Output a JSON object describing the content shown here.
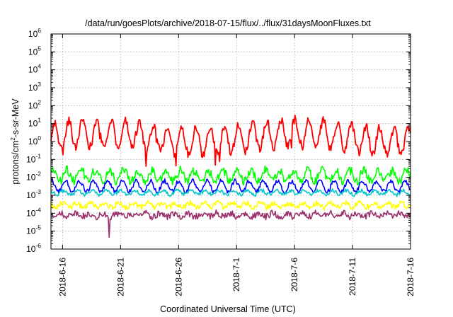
{
  "chart_data": {
    "type": "line",
    "title": "/data/run/goesPlots/archive/2018-07-15/flux/../flux/31daysMoonFluxes.txt",
    "xlabel": "Coordinated Universal Time (UTC)",
    "ylabel": {
      "base": "protons/cm",
      "sup": "2",
      "rest": "-s-sr-MeV"
    },
    "y_scale": "log",
    "ylim": [
      1e-06,
      1000000.0
    ],
    "y_ticks": [
      {
        "base": "10",
        "exp": "-6",
        "value": 1e-06
      },
      {
        "base": "10",
        "exp": "-5",
        "value": 1e-05
      },
      {
        "base": "10",
        "exp": "-4",
        "value": 0.0001
      },
      {
        "base": "10",
        "exp": "-3",
        "value": 0.001
      },
      {
        "base": "10",
        "exp": "-2",
        "value": 0.01
      },
      {
        "base": "10",
        "exp": "-1",
        "value": 0.1
      },
      {
        "base": "10",
        "exp": "0",
        "value": 1.0
      },
      {
        "base": "10",
        "exp": "1",
        "value": 10.0
      },
      {
        "base": "10",
        "exp": "2",
        "value": 100.0
      },
      {
        "base": "10",
        "exp": "3",
        "value": 1000.0
      },
      {
        "base": "10",
        "exp": "4",
        "value": 10000.0
      },
      {
        "base": "10",
        "exp": "5",
        "value": 100000.0
      },
      {
        "base": "10",
        "exp": "6",
        "value": 1000000.0
      }
    ],
    "xlim": [
      "2018-06-15",
      "2018-07-16"
    ],
    "x_ticks": [
      "2018-6-16",
      "2018-6-21",
      "2018-6-26",
      "2018-7-1",
      "2018-7-6",
      "2018-7-11",
      "2018-7-16"
    ],
    "x_tick_dates": [
      "2018-06-16",
      "2018-06-21",
      "2018-06-26",
      "2018-07-01",
      "2018-07-06",
      "2018-07-11",
      "2018-07-16"
    ],
    "grid": true,
    "legend": "none",
    "series": [
      {
        "color": "#ff0000",
        "log10_mid": 0.25,
        "log10_amp": 0.75,
        "noise": 0.25
      },
      {
        "color": "#00ff00",
        "log10_mid": -1.9,
        "log10_amp": 0.3,
        "noise": 0.25
      },
      {
        "color": "#0000ff",
        "log10_mid": -2.5,
        "log10_amp": 0.3,
        "noise": 0.12
      },
      {
        "color": "#00c8c8",
        "log10_mid": -2.85,
        "log10_amp": 0.12,
        "noise": 0.1
      },
      {
        "color": "#ffff00",
        "log10_mid": -3.55,
        "log10_amp": 0.12,
        "noise": 0.15
      },
      {
        "color": "#9b2f6b",
        "log10_mid": -4.1,
        "log10_amp": 0.1,
        "noise": 0.18
      }
    ]
  }
}
